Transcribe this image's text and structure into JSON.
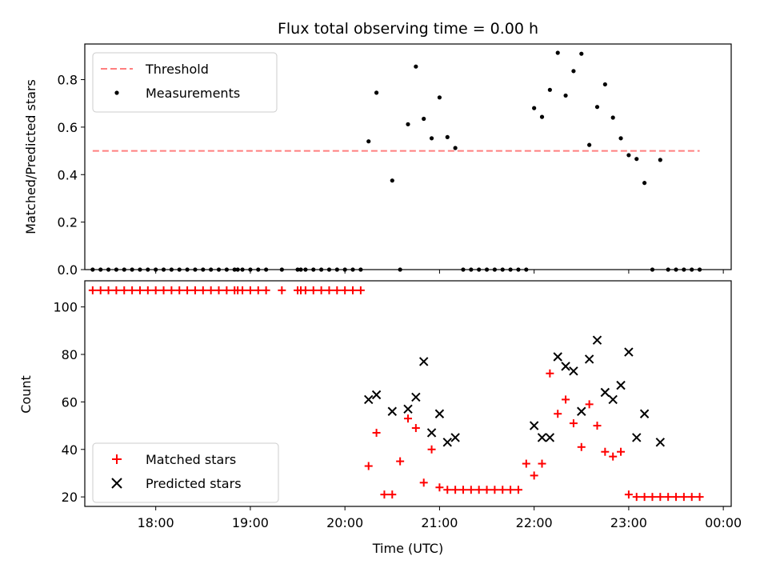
{
  "chart_data": [
    {
      "type": "scatter",
      "title": "Flux total observing time = 0.00 h",
      "xlabel": "",
      "ylabel": "Matched/Predicted stars",
      "xlim": [
        "17:15",
        "00:05"
      ],
      "ylim": [
        0,
        0.95
      ],
      "yticks": [
        "0.0",
        "0.2",
        "0.4",
        "0.6",
        "0.8"
      ],
      "legend": "top-left",
      "series": [
        {
          "name": "Threshold",
          "kind": "line",
          "color": "#ff7f7f",
          "x": [
            "17:20",
            "23:45"
          ],
          "y": [
            0.5,
            0.5
          ]
        },
        {
          "name": "Measurements",
          "kind": "scatter",
          "color": "#000000",
          "x": [
            "17:20",
            "17:25",
            "17:30",
            "17:35",
            "17:40",
            "17:45",
            "17:50",
            "17:55",
            "18:00",
            "18:05",
            "18:10",
            "18:15",
            "18:20",
            "18:25",
            "18:30",
            "18:35",
            "18:40",
            "18:45",
            "18:50",
            "18:52",
            "18:55",
            "19:00",
            "19:05",
            "19:10",
            "19:20",
            "19:30",
            "19:32",
            "19:35",
            "19:40",
            "19:45",
            "19:50",
            "19:55",
            "20:00",
            "20:05",
            "20:10",
            "20:15",
            "20:20",
            "20:30",
            "20:35",
            "20:40",
            "20:45",
            "20:50",
            "20:55",
            "21:00",
            "21:05",
            "21:10",
            "21:15",
            "21:20",
            "21:25",
            "21:30",
            "21:35",
            "21:40",
            "21:45",
            "21:50",
            "21:55",
            "22:00",
            "22:05",
            "22:10",
            "22:15",
            "22:20",
            "22:25",
            "22:30",
            "22:35",
            "22:40",
            "22:45",
            "22:50",
            "22:55",
            "23:00",
            "23:05",
            "23:10",
            "23:15",
            "23:20",
            "23:25",
            "23:30",
            "23:35",
            "23:40",
            "23:45"
          ],
          "y": [
            0,
            0,
            0,
            0,
            0,
            0,
            0,
            0,
            0,
            0,
            0,
            0,
            0,
            0,
            0,
            0,
            0,
            0,
            0,
            0,
            0,
            0,
            0,
            0,
            0,
            0,
            0,
            0,
            0,
            0,
            0,
            0,
            0,
            0,
            0,
            0.54,
            0.745,
            0.375,
            0,
            0.612,
            0.855,
            0.635,
            0.553,
            0.725,
            0.558,
            0.512,
            0,
            0,
            0,
            0,
            0,
            0,
            0,
            0,
            0,
            0.68,
            0.643,
            0.757,
            0.913,
            0.733,
            0.836,
            0.909,
            0.525,
            0.685,
            0.78,
            0.64,
            0.553,
            0.482,
            0.466,
            0.365,
            0,
            0.462,
            0,
            0,
            0,
            0,
            0
          ]
        }
      ]
    },
    {
      "type": "scatter",
      "title": "",
      "xlabel": "Time (UTC)",
      "ylabel": "Count",
      "xlim": [
        "17:15",
        "00:05"
      ],
      "ylim": [
        16,
        111
      ],
      "yticks": [
        "20",
        "40",
        "60",
        "80",
        "100"
      ],
      "xticks": [
        "18:00",
        "19:00",
        "20:00",
        "21:00",
        "22:00",
        "23:00",
        "00:00"
      ],
      "legend": "bottom-left",
      "series": [
        {
          "name": "Matched stars",
          "marker": "plus",
          "color": "#ff0000",
          "x": [
            "17:20",
            "17:25",
            "17:30",
            "17:35",
            "17:40",
            "17:45",
            "17:50",
            "17:55",
            "18:00",
            "18:05",
            "18:10",
            "18:15",
            "18:20",
            "18:25",
            "18:30",
            "18:35",
            "18:40",
            "18:45",
            "18:50",
            "18:52",
            "18:55",
            "19:00",
            "19:05",
            "19:10",
            "19:20",
            "19:30",
            "19:32",
            "19:35",
            "19:40",
            "19:45",
            "19:50",
            "19:55",
            "20:00",
            "20:05",
            "20:10",
            "20:15",
            "20:20",
            "20:25",
            "20:30",
            "20:35",
            "20:40",
            "20:45",
            "20:50",
            "20:55",
            "21:00",
            "21:05",
            "21:10",
            "21:15",
            "21:20",
            "21:25",
            "21:30",
            "21:35",
            "21:40",
            "21:45",
            "21:50",
            "21:55",
            "22:00",
            "22:05",
            "22:10",
            "22:15",
            "22:20",
            "22:25",
            "22:30",
            "22:35",
            "22:40",
            "22:45",
            "22:50",
            "22:55",
            "23:00",
            "23:05",
            "23:10",
            "23:15",
            "23:20",
            "23:25",
            "23:30",
            "23:35",
            "23:40",
            "23:45"
          ],
          "y": [
            107,
            107,
            107,
            107,
            107,
            107,
            107,
            107,
            107,
            107,
            107,
            107,
            107,
            107,
            107,
            107,
            107,
            107,
            107,
            107,
            107,
            107,
            107,
            107,
            107,
            107,
            107,
            107,
            107,
            107,
            107,
            107,
            107,
            107,
            107,
            33,
            47,
            21,
            21,
            35,
            53,
            49,
            26,
            40,
            24,
            23,
            23,
            23,
            23,
            23,
            23,
            23,
            23,
            23,
            23,
            34,
            29,
            34,
            72,
            55,
            61,
            51,
            41,
            59,
            50,
            39,
            37,
            39,
            21,
            20,
            20,
            20,
            20,
            20,
            20,
            20,
            20,
            20
          ]
        },
        {
          "name": "Predicted stars",
          "marker": "x",
          "color": "#000000",
          "x": [
            "20:15",
            "20:20",
            "20:30",
            "20:40",
            "20:45",
            "20:50",
            "20:55",
            "21:00",
            "21:05",
            "21:10",
            "22:00",
            "22:05",
            "22:10",
            "22:15",
            "22:20",
            "22:25",
            "22:30",
            "22:35",
            "22:40",
            "22:45",
            "22:50",
            "22:55",
            "23:00",
            "23:05",
            "23:10",
            "23:20"
          ],
          "y": [
            61,
            63,
            56,
            57,
            62,
            77,
            47,
            55,
            43,
            45,
            50,
            45,
            45,
            79,
            75,
            73,
            56,
            78,
            86,
            64,
            61,
            67,
            81,
            45,
            55,
            43
          ]
        }
      ]
    }
  ]
}
